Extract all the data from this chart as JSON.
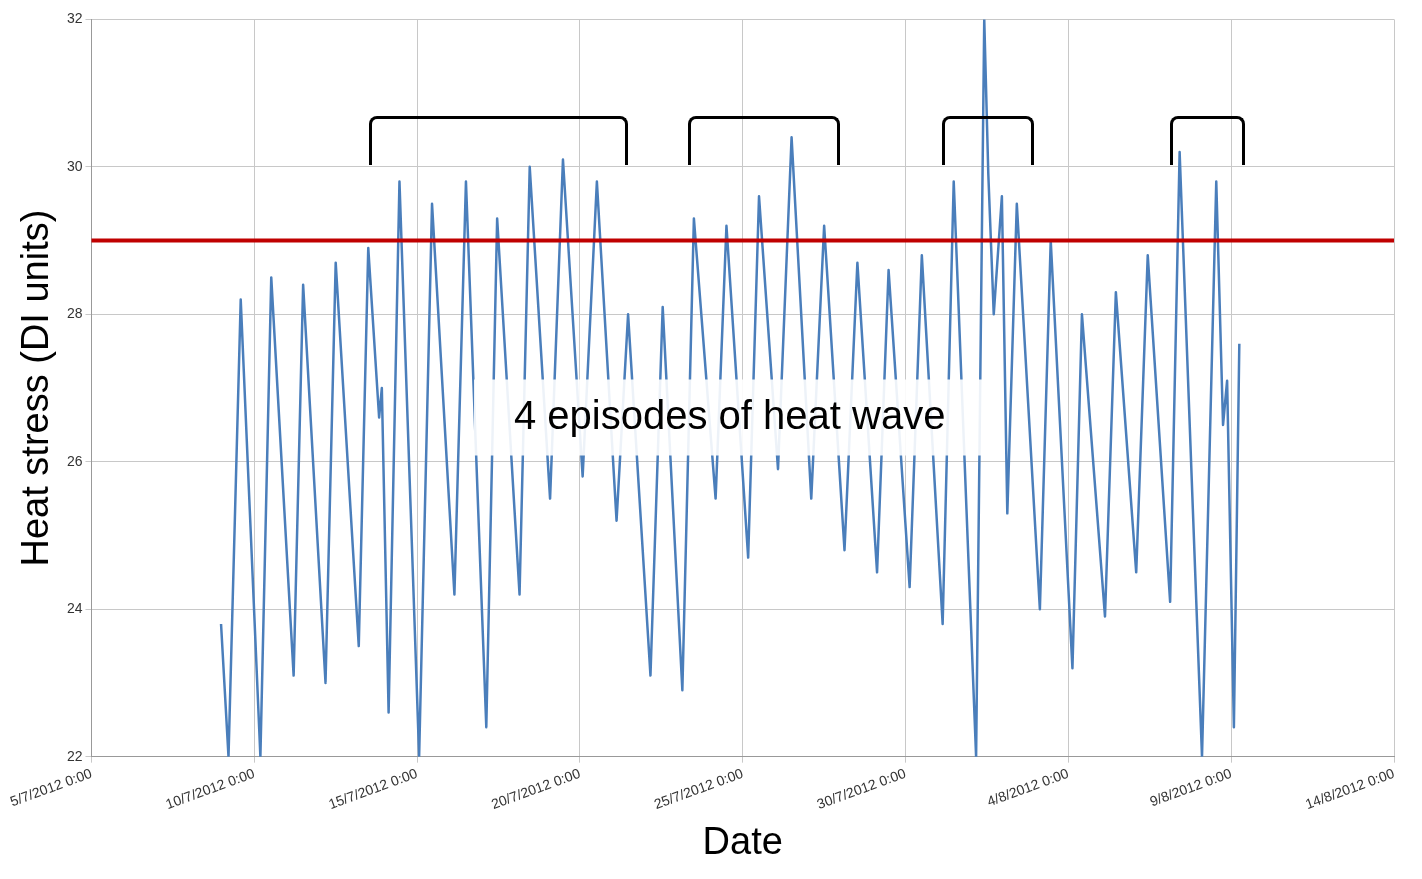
{
  "chart_data": {
    "type": "line",
    "xlabel": "Date",
    "ylabel": "Heat stress (DI units)",
    "annotations": [
      "4 episodes of heat wave"
    ],
    "xlim": [
      "2012-07-05",
      "2012-08-14"
    ],
    "xticks": [
      {
        "value": "2012-07-05",
        "label": "5/7/2012 0:00"
      },
      {
        "value": "2012-07-10",
        "label": "10/7/2012 0:00"
      },
      {
        "value": "2012-07-15",
        "label": "15/7/2012 0:00"
      },
      {
        "value": "2012-07-20",
        "label": "20/7/2012 0:00"
      },
      {
        "value": "2012-07-25",
        "label": "25/7/2012 0:00"
      },
      {
        "value": "2012-07-30",
        "label": "30/7/2012 0:00"
      },
      {
        "value": "2012-08-04",
        "label": "4/8/2012 0:00"
      },
      {
        "value": "2012-08-09",
        "label": "9/8/2012 0:00"
      },
      {
        "value": "2012-08-14",
        "label": "14/8/2012 0:00"
      }
    ],
    "ylim": [
      22,
      32
    ],
    "yticks": [
      22,
      24,
      26,
      28,
      30,
      32
    ],
    "grid": true,
    "legend": false,
    "ref_lines": [
      {
        "axis": "y",
        "value": 29,
        "color": "#c00000"
      }
    ],
    "series": [
      {
        "color": "#4a7ebb",
        "x": [
          "2012-07-08T23:30",
          "2012-07-09T05:00",
          "2012-07-09T14:00",
          "2012-07-10T04:30",
          "2012-07-10T12:30",
          "2012-07-11T05:00",
          "2012-07-11T12:00",
          "2012-07-12T04:30",
          "2012-07-12T12:00",
          "2012-07-13T05:00",
          "2012-07-13T12:00",
          "2012-07-13T20:00",
          "2012-07-13T22:00",
          "2012-07-14T03:00",
          "2012-07-14T11:00",
          "2012-07-15T01:30",
          "2012-07-15T11:00",
          "2012-07-16T03:30",
          "2012-07-16T12:00",
          "2012-07-17T03:00",
          "2012-07-17T11:00",
          "2012-07-18T03:30",
          "2012-07-18T11:00",
          "2012-07-19T02:00",
          "2012-07-19T11:30",
          "2012-07-20T02:00",
          "2012-07-20T12:30",
          "2012-07-21T03:00",
          "2012-07-21T11:30",
          "2012-07-22T04:00",
          "2012-07-22T13:00",
          "2012-07-23T03:30",
          "2012-07-23T12:00",
          "2012-07-24T04:00",
          "2012-07-24T12:00",
          "2012-07-25T04:00",
          "2012-07-25T12:00",
          "2012-07-26T02:00",
          "2012-07-26T12:00",
          "2012-07-27T02:30",
          "2012-07-27T12:00",
          "2012-07-28T03:00",
          "2012-07-28T12:30",
          "2012-07-29T03:00",
          "2012-07-29T11:30",
          "2012-07-30T03:00",
          "2012-07-30T12:00",
          "2012-07-31T03:20",
          "2012-07-31T11:30",
          "2012-08-01T04:00",
          "2012-08-01T10:00",
          "2012-08-01T13:00",
          "2012-08-01T17:00",
          "2012-08-01T23:00",
          "2012-08-02T03:00",
          "2012-08-02T10:00",
          "2012-08-03T03:00",
          "2012-08-03T11:00",
          "2012-08-04T03:00",
          "2012-08-04T10:00",
          "2012-08-05T03:00",
          "2012-08-05T11:00",
          "2012-08-06T02:00",
          "2012-08-06T10:30",
          "2012-08-07T03:00",
          "2012-08-07T10:00",
          "2012-08-08T02:30",
          "2012-08-08T13:00",
          "2012-08-08T18:00",
          "2012-08-08T21:00",
          "2012-08-09T02:00",
          "2012-08-09T06:00"
        ],
        "values": [
          23.8,
          22.0,
          28.2,
          22.0,
          28.5,
          23.1,
          28.4,
          23.0,
          28.7,
          23.5,
          28.9,
          26.6,
          27.0,
          22.6,
          29.8,
          22.0,
          29.5,
          24.2,
          29.8,
          22.4,
          29.3,
          24.2,
          30.0,
          25.5,
          30.1,
          25.8,
          29.8,
          25.2,
          28.0,
          23.1,
          28.1,
          22.9,
          29.3,
          25.5,
          29.2,
          24.7,
          29.6,
          25.9,
          30.4,
          25.5,
          29.2,
          24.8,
          28.7,
          24.5,
          28.6,
          24.3,
          28.8,
          23.8,
          29.8,
          22.0,
          32.0,
          29.9,
          28.0,
          29.6,
          25.3,
          29.5,
          24.0,
          29.0,
          23.2,
          28.0,
          23.9,
          28.3,
          24.5,
          28.8,
          24.1,
          30.2,
          22.0,
          29.8,
          26.5,
          27.1,
          22.4,
          27.6
        ]
      }
    ]
  }
}
